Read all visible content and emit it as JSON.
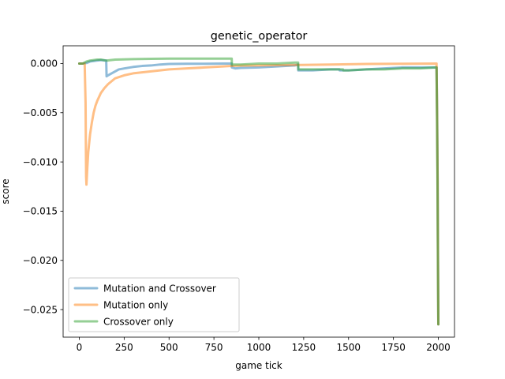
{
  "chart_data": {
    "type": "line",
    "title": "genetic_operator",
    "xlabel": "game tick",
    "ylabel": "score",
    "xlim": [
      -90,
      2090
    ],
    "ylim": [
      -0.0278,
      0.0018
    ],
    "xticks": [
      0,
      250,
      500,
      750,
      1000,
      1250,
      1500,
      1750,
      2000
    ],
    "xtick_labels": [
      "0",
      "250",
      "500",
      "750",
      "1000",
      "1250",
      "1500",
      "1750",
      "2000"
    ],
    "yticks": [
      0.0,
      -0.005,
      -0.01,
      -0.015,
      -0.02,
      -0.025
    ],
    "ytick_labels": [
      "0.000",
      "−0.005",
      "−0.010",
      "−0.015",
      "−0.020",
      "−0.025"
    ],
    "grid": false,
    "legend_position": "lower-left",
    "series": [
      {
        "name": "Mutation and Crossover",
        "color": "#1f77b4",
        "x": [
          0,
          20,
          40,
          60,
          80,
          100,
          120,
          150,
          152,
          160,
          180,
          200,
          220,
          250,
          300,
          350,
          400,
          450,
          500,
          600,
          700,
          800,
          849,
          850,
          870,
          900,
          1000,
          1100,
          1200,
          1219,
          1220,
          1240,
          1300,
          1400,
          1449,
          1450,
          1470,
          1500,
          1600,
          1700,
          1800,
          1900,
          1990,
          1993,
          1996,
          1998,
          2000
        ],
        "y": [
          0.0,
          0.0,
          5e-05,
          0.0002,
          0.00025,
          0.0003,
          0.00035,
          0.0003,
          -0.0013,
          -0.0012,
          -0.001,
          -0.0008,
          -0.0006,
          -0.0005,
          -0.00035,
          -0.00025,
          -0.0002,
          -0.0001,
          -5e-05,
          -3e-05,
          -2e-05,
          -1e-05,
          0.0,
          -0.0004,
          -0.0005,
          -0.00045,
          -0.0004,
          -0.0003,
          -0.0002,
          -0.0001,
          -0.0007,
          -0.0007,
          -0.0007,
          -0.0006,
          -0.0006,
          -0.0007,
          -0.0007,
          -0.0007,
          -0.0006,
          -0.0005,
          -0.0004,
          -0.0004,
          -0.0004,
          -0.005,
          -0.012,
          -0.02,
          -0.0265
        ]
      },
      {
        "name": "Mutation only",
        "color": "#ff7f0e",
        "x": [
          0,
          30,
          35,
          38,
          40,
          45,
          50,
          60,
          70,
          80,
          90,
          100,
          120,
          140,
          160,
          180,
          200,
          250,
          300,
          350,
          400,
          450,
          500,
          600,
          700,
          800,
          850,
          900,
          1000,
          1200,
          1400,
          1600,
          1800,
          1990,
          1993,
          1996,
          1998,
          2000
        ],
        "y": [
          0.0,
          0.0,
          -0.004,
          -0.0115,
          -0.0123,
          -0.0105,
          -0.009,
          -0.0072,
          -0.006,
          -0.005,
          -0.0043,
          -0.0038,
          -0.003,
          -0.0025,
          -0.0021,
          -0.0018,
          -0.0015,
          -0.0012,
          -0.001,
          -0.0009,
          -0.0008,
          -0.0007,
          -0.0006,
          -0.0005,
          -0.0004,
          -0.0003,
          -0.00025,
          -0.00022,
          -0.0002,
          -0.00015,
          -0.0001,
          -5e-05,
          -2e-05,
          0.0,
          -0.005,
          -0.012,
          -0.02,
          -0.0265
        ]
      },
      {
        "name": "Crossover only",
        "color": "#2ca02c",
        "x": [
          0,
          20,
          40,
          60,
          80,
          100,
          120,
          150,
          200,
          300,
          400,
          500,
          600,
          700,
          800,
          849,
          850,
          870,
          900,
          1000,
          1100,
          1200,
          1219,
          1220,
          1240,
          1300,
          1400,
          1469,
          1470,
          1500,
          1600,
          1700,
          1800,
          1900,
          1990,
          1993,
          1996,
          1998,
          2000
        ],
        "y": [
          0.0,
          0.0,
          0.0002,
          0.0003,
          0.00035,
          0.0004,
          0.0004,
          0.0003,
          0.0004,
          0.00045,
          0.00048,
          0.0005,
          0.0005,
          0.0005,
          0.0005,
          0.0005,
          -0.0001,
          -0.0001,
          -0.0001,
          0.0,
          0.0,
          0.0001,
          0.0001,
          -0.0006,
          -0.0006,
          -0.0006,
          -0.0006,
          -0.0006,
          -0.0007,
          -0.0007,
          -0.0006,
          -0.0006,
          -0.0005,
          -0.0005,
          -0.0004,
          -0.006,
          -0.014,
          -0.021,
          -0.0265
        ]
      }
    ]
  }
}
